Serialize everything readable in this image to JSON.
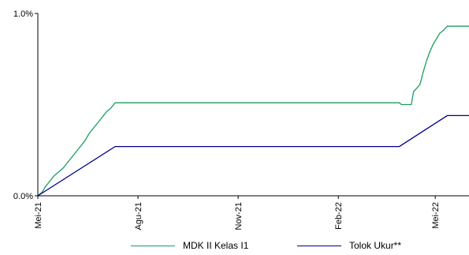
{
  "chart_data": {
    "type": "line",
    "title": "",
    "xlabel": "",
    "ylabel": "",
    "ylim": [
      0,
      1.0
    ],
    "y_ticks": [
      {
        "value": 0,
        "label": "0.0%"
      },
      {
        "value": 1.0,
        "label": "1.0%"
      }
    ],
    "x_range": [
      "2021-05-01",
      "2022-06-01"
    ],
    "x_ticks": [
      {
        "date": "2021-05-01",
        "label": "Mei-21"
      },
      {
        "date": "2021-08-01",
        "label": "Agu-21"
      },
      {
        "date": "2021-11-01",
        "label": "Nov-21"
      },
      {
        "date": "2022-02-01",
        "label": "Feb-22"
      },
      {
        "date": "2022-05-01",
        "label": "Mei-22"
      }
    ],
    "grid": false,
    "legend_position": "bottom",
    "series": [
      {
        "name": "MDK II Kelas I1",
        "color": "#1a9e5f",
        "points": [
          [
            "2021-05-01",
            0.0
          ],
          [
            "2021-05-05",
            0.02
          ],
          [
            "2021-05-08",
            0.05
          ],
          [
            "2021-05-12",
            0.08
          ],
          [
            "2021-05-16",
            0.11
          ],
          [
            "2021-05-20",
            0.13
          ],
          [
            "2021-05-24",
            0.15
          ],
          [
            "2021-05-28",
            0.18
          ],
          [
            "2021-06-01",
            0.21
          ],
          [
            "2021-06-05",
            0.24
          ],
          [
            "2021-06-09",
            0.27
          ],
          [
            "2021-06-13",
            0.3
          ],
          [
            "2021-06-17",
            0.34
          ],
          [
            "2021-06-21",
            0.37
          ],
          [
            "2021-06-25",
            0.4
          ],
          [
            "2021-06-29",
            0.43
          ],
          [
            "2021-07-03",
            0.46
          ],
          [
            "2021-07-07",
            0.48
          ],
          [
            "2021-07-11",
            0.51
          ],
          [
            "2022-03-29",
            0.51
          ],
          [
            "2022-03-31",
            0.5
          ],
          [
            "2022-04-09",
            0.5
          ],
          [
            "2022-04-11",
            0.57
          ],
          [
            "2022-04-14",
            0.59
          ],
          [
            "2022-04-17",
            0.61
          ],
          [
            "2022-04-20",
            0.68
          ],
          [
            "2022-04-23",
            0.74
          ],
          [
            "2022-04-26",
            0.79
          ],
          [
            "2022-04-29",
            0.83
          ],
          [
            "2022-05-02",
            0.86
          ],
          [
            "2022-05-05",
            0.89
          ],
          [
            "2022-05-09",
            0.91
          ],
          [
            "2022-05-12",
            0.93
          ],
          [
            "2022-06-01",
            0.93
          ]
        ]
      },
      {
        "name": "Tolok Ukur**",
        "color": "#00008b",
        "points": [
          [
            "2021-05-01",
            0.0
          ],
          [
            "2021-07-11",
            0.27
          ],
          [
            "2022-03-29",
            0.27
          ],
          [
            "2022-05-12",
            0.44
          ],
          [
            "2022-06-01",
            0.44
          ]
        ]
      }
    ]
  }
}
